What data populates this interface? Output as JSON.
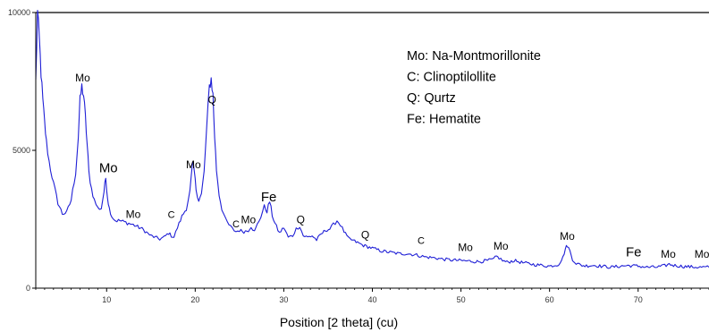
{
  "chart_data": {
    "type": "line",
    "xlabel": "Position [2 theta] (cu)",
    "ylabel": "",
    "xlim": [
      2,
      78
    ],
    "ylim": [
      0,
      10000
    ],
    "x_ticks": [
      10,
      20,
      30,
      40,
      50,
      60,
      70
    ],
    "y_ticks": [
      0,
      5000,
      10000
    ],
    "y_tick_labels": [
      "0",
      "5000",
      "10000"
    ],
    "grid": false,
    "line_color": "#1f1fd6",
    "legend_placement": "top-right",
    "legend": [
      "Mo: Na-Montmorillonite",
      "C: Clinoptilollite",
      "Q: Qurtz",
      "Fe: Hematite"
    ],
    "series": [
      {
        "x": [
          2.0,
          2.2,
          2.4,
          2.6,
          2.8,
          3.0,
          3.2,
          3.5,
          4.0,
          4.5,
          5.0,
          5.5,
          6.0,
          6.5,
          6.8,
          7.0,
          7.2,
          7.4,
          7.6,
          7.8,
          8.0,
          8.3,
          8.6,
          9.0,
          9.4,
          9.7,
          9.9,
          10.1,
          10.3,
          10.6,
          11.0,
          11.5,
          12.0,
          13.0,
          14.0,
          15.0,
          16.0,
          16.5,
          17.0,
          17.3,
          17.6,
          18.0,
          18.5,
          19.0,
          19.4,
          19.7,
          19.9,
          20.1,
          20.4,
          20.7,
          21.0,
          21.3,
          21.6,
          21.8,
          22.0,
          22.2,
          22.4,
          22.7,
          23.0,
          23.4,
          23.8,
          24.2,
          24.6,
          25.0,
          25.5,
          26.0,
          26.3,
          26.7,
          27.0,
          27.4,
          27.8,
          28.1,
          28.4,
          28.7,
          29.0,
          29.5,
          30.0,
          30.5,
          31.0,
          31.4,
          31.8,
          32.2,
          32.7,
          33.2,
          33.7,
          34.2,
          34.7,
          35.2,
          35.6,
          36.0,
          36.4,
          36.8,
          37.3,
          38.0,
          39.0,
          40.0,
          41.0,
          42.0,
          43.0,
          44.0,
          45.0,
          46.0,
          47.0,
          48.0,
          49.0,
          50.0,
          51.0,
          52.0,
          53.0,
          53.7,
          54.0,
          54.3,
          54.7,
          55.2,
          56.0,
          57.0,
          58.0,
          59.0,
          60.0,
          61.0,
          61.5,
          61.8,
          62.0,
          62.3,
          62.6,
          63.0,
          63.5,
          64.0,
          65.0,
          66.0,
          67.0,
          68.0,
          69.0,
          70.0,
          71.0,
          72.0,
          73.0,
          73.5,
          74.0,
          75.0,
          76.0,
          77.0,
          78.0
        ],
        "y": [
          7500,
          10000,
          9000,
          7800,
          6800,
          6000,
          5300,
          4600,
          3800,
          3100,
          2700,
          2750,
          3200,
          4200,
          5500,
          6800,
          7300,
          7000,
          6200,
          5200,
          4200,
          3600,
          3200,
          2900,
          2900,
          3500,
          4000,
          3300,
          2900,
          2600,
          2450,
          2450,
          2400,
          2300,
          2150,
          1900,
          1780,
          1850,
          2000,
          1900,
          1850,
          2200,
          2600,
          2900,
          3500,
          4500,
          4200,
          3600,
          3200,
          3400,
          4200,
          5800,
          7300,
          7600,
          7000,
          5500,
          4300,
          3400,
          2900,
          2500,
          2300,
          2150,
          2050,
          2100,
          2050,
          2100,
          2250,
          2050,
          2300,
          2600,
          2950,
          2800,
          3150,
          2650,
          2350,
          2000,
          2200,
          1850,
          1900,
          2150,
          2250,
          1900,
          1850,
          1900,
          1750,
          1950,
          2100,
          2150,
          2300,
          2450,
          2300,
          2050,
          1800,
          1700,
          1550,
          1450,
          1350,
          1300,
          1250,
          1250,
          1200,
          1130,
          1100,
          1050,
          1020,
          1000,
          980,
          960,
          1000,
          1050,
          1150,
          1100,
          1000,
          940,
          1000,
          920,
          870,
          830,
          800,
          860,
          1100,
          1450,
          1550,
          1350,
          1050,
          900,
          840,
          810,
          830,
          790,
          760,
          800,
          820,
          800,
          760,
          760,
          810,
          870,
          830,
          790,
          770,
          760,
          760
        ]
      }
    ],
    "peak_labels": [
      {
        "text": "Mo",
        "x": 7.3,
        "y": 7500
      },
      {
        "text": "Mo",
        "x": 10.2,
        "y": 4200
      },
      {
        "text": "Mo",
        "x": 13.0,
        "y": 2550
      },
      {
        "text": "C",
        "x": 17.3,
        "y": 2550
      },
      {
        "text": "Mo",
        "x": 19.8,
        "y": 4350
      },
      {
        "text": "Q",
        "x": 21.9,
        "y": 6700
      },
      {
        "text": "C",
        "x": 24.6,
        "y": 2200
      },
      {
        "text": "Mo",
        "x": 26.0,
        "y": 2350
      },
      {
        "text": "Fe",
        "x": 28.3,
        "y": 3150
      },
      {
        "text": "Q",
        "x": 31.9,
        "y": 2350
      },
      {
        "text": "Q",
        "x": 39.2,
        "y": 1800
      },
      {
        "text": "C",
        "x": 45.5,
        "y": 1600
      },
      {
        "text": "Mo",
        "x": 50.5,
        "y": 1350
      },
      {
        "text": "Mo",
        "x": 54.5,
        "y": 1400
      },
      {
        "text": "Mo",
        "x": 62.0,
        "y": 1750
      },
      {
        "text": "Fe",
        "x": 69.5,
        "y": 1150
      },
      {
        "text": "Mo",
        "x": 73.4,
        "y": 1100
      },
      {
        "text": "Mo",
        "x": 77.2,
        "y": 1100
      }
    ]
  }
}
